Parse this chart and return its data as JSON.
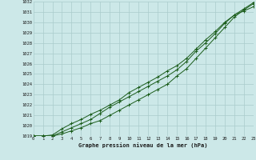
{
  "title": "Graphe pression niveau de la mer (hPa)",
  "bg_color": "#cce8e8",
  "grid_color": "#aacccc",
  "line_color": "#1a5c1a",
  "xlim": [
    0,
    23
  ],
  "ylim": [
    1019,
    1032
  ],
  "xticks": [
    0,
    1,
    2,
    3,
    4,
    5,
    6,
    7,
    8,
    9,
    10,
    11,
    12,
    13,
    14,
    15,
    16,
    17,
    18,
    19,
    20,
    21,
    22,
    23
  ],
  "yticks": [
    1019,
    1020,
    1021,
    1022,
    1023,
    1024,
    1025,
    1026,
    1027,
    1028,
    1029,
    1030,
    1031,
    1032
  ],
  "series1": [
    1019.0,
    1019.0,
    1019.0,
    1019.2,
    1019.5,
    1019.8,
    1020.2,
    1020.5,
    1021.0,
    1021.5,
    1022.0,
    1022.5,
    1023.0,
    1023.5,
    1024.0,
    1024.8,
    1025.5,
    1026.5,
    1027.5,
    1028.5,
    1029.5,
    1030.5,
    1031.2,
    1031.8
  ],
  "series2": [
    1019.0,
    1019.0,
    1019.0,
    1019.4,
    1019.8,
    1020.2,
    1020.6,
    1021.2,
    1021.8,
    1022.3,
    1022.8,
    1023.3,
    1023.8,
    1024.3,
    1024.8,
    1025.4,
    1026.2,
    1027.2,
    1028.0,
    1028.9,
    1029.9,
    1030.7,
    1031.1,
    1031.5
  ],
  "series3": [
    1019.0,
    1019.0,
    1019.1,
    1019.7,
    1020.2,
    1020.6,
    1021.1,
    1021.5,
    1022.0,
    1022.5,
    1023.2,
    1023.7,
    1024.2,
    1024.7,
    1025.3,
    1025.8,
    1026.5,
    1027.4,
    1028.3,
    1029.1,
    1030.0,
    1030.7,
    1031.3,
    1031.9
  ]
}
